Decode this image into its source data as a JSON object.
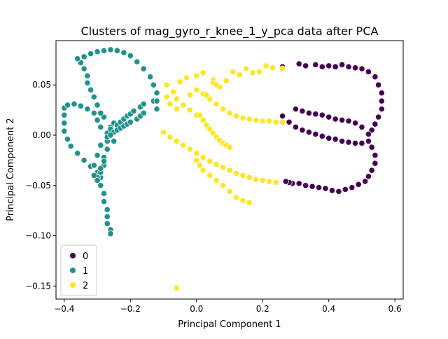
{
  "chart_data": {
    "type": "scatter",
    "title": "Clusters of mag_gyro_r_knee_1_y_pca data after PCA",
    "xlabel": "Principal Component 1",
    "ylabel": "Principal Component 2",
    "xlim": [
      -0.425,
      0.625
    ],
    "ylim": [
      -0.163,
      0.094
    ],
    "xticks": [
      -0.4,
      -0.2,
      0.0,
      0.2,
      0.4,
      0.6
    ],
    "xtick_labels": [
      "−0.4",
      "−0.2",
      "0.0",
      "0.2",
      "0.4",
      "0.6"
    ],
    "yticks": [
      -0.15,
      -0.1,
      -0.05,
      0.0,
      0.05
    ],
    "ytick_labels": [
      "−0.15",
      "−0.10",
      "−0.05",
      "0.00",
      "0.05"
    ],
    "grid": false,
    "legend": {
      "placement": "lower-left"
    },
    "colors": {
      "0": "#440154",
      "1": "#21918c",
      "2": "#fde725"
    },
    "series": [
      {
        "name": "0",
        "color": "#440154",
        "points": [
          [
            0.26,
            0.068
          ],
          [
            0.31,
            0.071
          ],
          [
            0.33,
            0.069
          ],
          [
            0.36,
            0.07
          ],
          [
            0.38,
            0.068
          ],
          [
            0.4,
            0.069
          ],
          [
            0.42,
            0.068
          ],
          [
            0.44,
            0.07
          ],
          [
            0.46,
            0.068
          ],
          [
            0.48,
            0.067
          ],
          [
            0.5,
            0.066
          ],
          [
            0.52,
            0.063
          ],
          [
            0.54,
            0.058
          ],
          [
            0.55,
            0.05
          ],
          [
            0.56,
            0.042
          ],
          [
            0.56,
            0.034
          ],
          [
            0.56,
            0.026
          ],
          [
            0.55,
            0.018
          ],
          [
            0.54,
            0.011
          ],
          [
            0.53,
            0.005
          ],
          [
            0.52,
            0.001
          ],
          [
            0.3,
            0.026
          ],
          [
            0.32,
            0.024
          ],
          [
            0.34,
            0.022
          ],
          [
            0.36,
            0.021
          ],
          [
            0.38,
            0.02
          ],
          [
            0.4,
            0.018
          ],
          [
            0.42,
            0.016
          ],
          [
            0.44,
            0.015
          ],
          [
            0.46,
            0.014
          ],
          [
            0.48,
            0.012
          ],
          [
            0.5,
            0.008
          ],
          [
            0.26,
            0.019
          ],
          [
            0.28,
            0.013
          ],
          [
            0.3,
            0.008
          ],
          [
            0.32,
            0.005
          ],
          [
            0.34,
            0.003
          ],
          [
            0.36,
            0.001
          ],
          [
            0.38,
            -0.001
          ],
          [
            0.4,
            -0.003
          ],
          [
            0.42,
            -0.004
          ],
          [
            0.44,
            -0.006
          ],
          [
            0.46,
            -0.007
          ],
          [
            0.48,
            -0.008
          ],
          [
            0.5,
            -0.008
          ],
          [
            0.52,
            -0.006
          ],
          [
            0.53,
            -0.012
          ],
          [
            0.54,
            -0.02
          ],
          [
            0.54,
            -0.028
          ],
          [
            0.53,
            -0.035
          ],
          [
            0.52,
            -0.041
          ],
          [
            0.51,
            -0.046
          ],
          [
            0.49,
            -0.049
          ],
          [
            0.47,
            -0.052
          ],
          [
            0.45,
            -0.054
          ],
          [
            0.43,
            -0.056
          ],
          [
            0.41,
            -0.055
          ],
          [
            0.39,
            -0.053
          ],
          [
            0.37,
            -0.052
          ],
          [
            0.35,
            -0.051
          ],
          [
            0.33,
            -0.05
          ],
          [
            0.31,
            -0.048
          ],
          [
            0.29,
            -0.048
          ],
          [
            0.28,
            -0.047
          ],
          [
            0.27,
            -0.046
          ]
        ]
      },
      {
        "name": "1",
        "color": "#21918c",
        "points": [
          [
            -0.4,
            0.027
          ],
          [
            -0.39,
            0.03
          ],
          [
            -0.37,
            0.031
          ],
          [
            -0.35,
            0.029
          ],
          [
            -0.33,
            0.026
          ],
          [
            -0.31,
            0.022
          ],
          [
            -0.3,
            0.015
          ],
          [
            -0.29,
            0.008
          ],
          [
            -0.27,
            0.0
          ],
          [
            -0.25,
            -0.006
          ],
          [
            -0.4,
            0.02
          ],
          [
            -0.4,
            0.012
          ],
          [
            -0.4,
            0.004
          ],
          [
            -0.39,
            -0.004
          ],
          [
            -0.38,
            -0.011
          ],
          [
            -0.36,
            -0.018
          ],
          [
            -0.34,
            -0.025
          ],
          [
            -0.32,
            -0.031
          ],
          [
            -0.3,
            -0.037
          ],
          [
            -0.29,
            -0.042
          ],
          [
            -0.29,
            -0.05
          ],
          [
            -0.28,
            -0.058
          ],
          [
            -0.28,
            -0.066
          ],
          [
            -0.27,
            -0.074
          ],
          [
            -0.27,
            -0.081
          ],
          [
            -0.27,
            -0.088
          ],
          [
            -0.26,
            -0.094
          ],
          [
            -0.26,
            -0.098
          ],
          [
            -0.29,
            -0.037
          ],
          [
            -0.28,
            -0.03
          ],
          [
            -0.28,
            -0.022
          ],
          [
            -0.27,
            -0.014
          ],
          [
            -0.27,
            -0.006
          ],
          [
            -0.27,
            0.002
          ],
          [
            -0.26,
            0.008
          ],
          [
            -0.25,
            0.012
          ],
          [
            -0.24,
            0.01
          ],
          [
            -0.23,
            0.013
          ],
          [
            -0.22,
            0.016
          ],
          [
            -0.21,
            0.019
          ],
          [
            -0.2,
            0.021
          ],
          [
            -0.19,
            0.024
          ],
          [
            -0.17,
            0.028
          ],
          [
            -0.16,
            0.031
          ],
          [
            -0.13,
            0.034
          ],
          [
            -0.12,
            0.026
          ],
          [
            -0.26,
            0.006
          ],
          [
            -0.25,
            0.003
          ],
          [
            -0.24,
            0.005
          ],
          [
            -0.23,
            0.007
          ],
          [
            -0.22,
            0.009
          ],
          [
            -0.21,
            0.011
          ],
          [
            -0.2,
            0.013
          ],
          [
            -0.18,
            0.016
          ],
          [
            -0.17,
            0.019
          ],
          [
            -0.16,
            0.022
          ],
          [
            -0.27,
            -0.002
          ],
          [
            -0.26,
            0.0
          ],
          [
            -0.28,
            0.018
          ],
          [
            -0.29,
            0.022
          ],
          [
            -0.3,
            0.03
          ],
          [
            -0.31,
            0.038
          ],
          [
            -0.32,
            0.045
          ],
          [
            -0.33,
            0.052
          ],
          [
            -0.33,
            0.059
          ],
          [
            -0.34,
            0.066
          ],
          [
            -0.35,
            0.072
          ],
          [
            -0.36,
            0.076
          ],
          [
            -0.34,
            0.078
          ],
          [
            -0.32,
            0.081
          ],
          [
            -0.3,
            0.083
          ],
          [
            -0.28,
            0.084
          ],
          [
            -0.26,
            0.085
          ],
          [
            -0.24,
            0.084
          ],
          [
            -0.22,
            0.082
          ],
          [
            -0.2,
            0.079
          ],
          [
            -0.18,
            0.073
          ],
          [
            -0.16,
            0.066
          ],
          [
            -0.14,
            0.058
          ],
          [
            -0.13,
            0.05
          ],
          [
            -0.12,
            0.042
          ],
          [
            -0.12,
            0.034
          ],
          [
            -0.3,
            -0.042
          ],
          [
            -0.31,
            -0.04
          ],
          [
            -0.3,
            -0.045
          ],
          [
            -0.29,
            -0.033
          ],
          [
            -0.28,
            -0.026
          ],
          [
            -0.31,
            -0.03
          ],
          [
            -0.3,
            -0.02
          ],
          [
            -0.29,
            -0.01
          ]
        ]
      },
      {
        "name": "2",
        "color": "#fde725",
        "points": [
          [
            -0.09,
            0.05
          ],
          [
            -0.07,
            0.043
          ],
          [
            -0.06,
            0.036
          ],
          [
            -0.04,
            0.03
          ],
          [
            -0.02,
            0.025
          ],
          [
            0.0,
            0.02
          ],
          [
            -0.09,
            0.038
          ],
          [
            -0.08,
            0.031
          ],
          [
            -0.06,
            0.026
          ],
          [
            -0.04,
            0.03
          ],
          [
            -0.02,
            0.04
          ],
          [
            0.0,
            0.045
          ],
          [
            0.02,
            0.041
          ],
          [
            0.04,
            0.036
          ],
          [
            0.06,
            0.031
          ],
          [
            0.08,
            0.026
          ],
          [
            0.1,
            0.022
          ],
          [
            0.12,
            0.019
          ],
          [
            0.14,
            0.017
          ],
          [
            0.16,
            0.016
          ],
          [
            0.18,
            0.015
          ],
          [
            0.2,
            0.014
          ],
          [
            0.22,
            0.014
          ],
          [
            0.24,
            0.013
          ],
          [
            0.26,
            0.013
          ],
          [
            -0.05,
            0.053
          ],
          [
            -0.03,
            0.057
          ],
          [
            0.0,
            0.059
          ],
          [
            0.02,
            0.062
          ],
          [
            0.05,
            0.055
          ],
          [
            0.07,
            0.048
          ],
          [
            0.09,
            0.054
          ],
          [
            0.11,
            0.063
          ],
          [
            0.13,
            0.06
          ],
          [
            0.15,
            0.066
          ],
          [
            0.17,
            0.062
          ],
          [
            0.19,
            0.063
          ],
          [
            0.21,
            0.069
          ],
          [
            0.23,
            0.067
          ],
          [
            0.26,
            0.066
          ],
          [
            0.01,
            0.02
          ],
          [
            0.02,
            0.015
          ],
          [
            0.03,
            0.01
          ],
          [
            0.04,
            0.006
          ],
          [
            0.05,
            0.002
          ],
          [
            0.06,
            -0.002
          ],
          [
            0.07,
            -0.005
          ],
          [
            0.08,
            -0.008
          ],
          [
            0.09,
            -0.01
          ],
          [
            0.1,
            -0.012
          ],
          [
            -0.1,
            0.003
          ],
          [
            -0.08,
            -0.002
          ],
          [
            -0.06,
            -0.006
          ],
          [
            -0.04,
            -0.01
          ],
          [
            -0.02,
            -0.014
          ],
          [
            0.0,
            -0.018
          ],
          [
            0.02,
            -0.022
          ],
          [
            0.04,
            -0.026
          ],
          [
            0.06,
            -0.029
          ],
          [
            0.08,
            -0.032
          ],
          [
            0.1,
            -0.035
          ],
          [
            0.12,
            -0.038
          ],
          [
            0.14,
            -0.04
          ],
          [
            0.16,
            -0.042
          ],
          [
            0.18,
            -0.044
          ],
          [
            0.2,
            -0.045
          ],
          [
            0.22,
            -0.046
          ],
          [
            0.24,
            -0.047
          ],
          [
            0.0,
            -0.025
          ],
          [
            0.01,
            -0.03
          ],
          [
            0.02,
            -0.035
          ],
          [
            0.04,
            -0.04
          ],
          [
            0.06,
            -0.045
          ],
          [
            0.08,
            -0.05
          ],
          [
            0.1,
            -0.056
          ],
          [
            0.12,
            -0.062
          ],
          [
            0.14,
            -0.065
          ],
          [
            0.16,
            -0.067
          ],
          [
            0.05,
            0.052
          ],
          [
            0.06,
            0.05
          ],
          [
            0.03,
            0.04
          ],
          [
            -0.06,
            -0.152
          ]
        ]
      }
    ]
  }
}
